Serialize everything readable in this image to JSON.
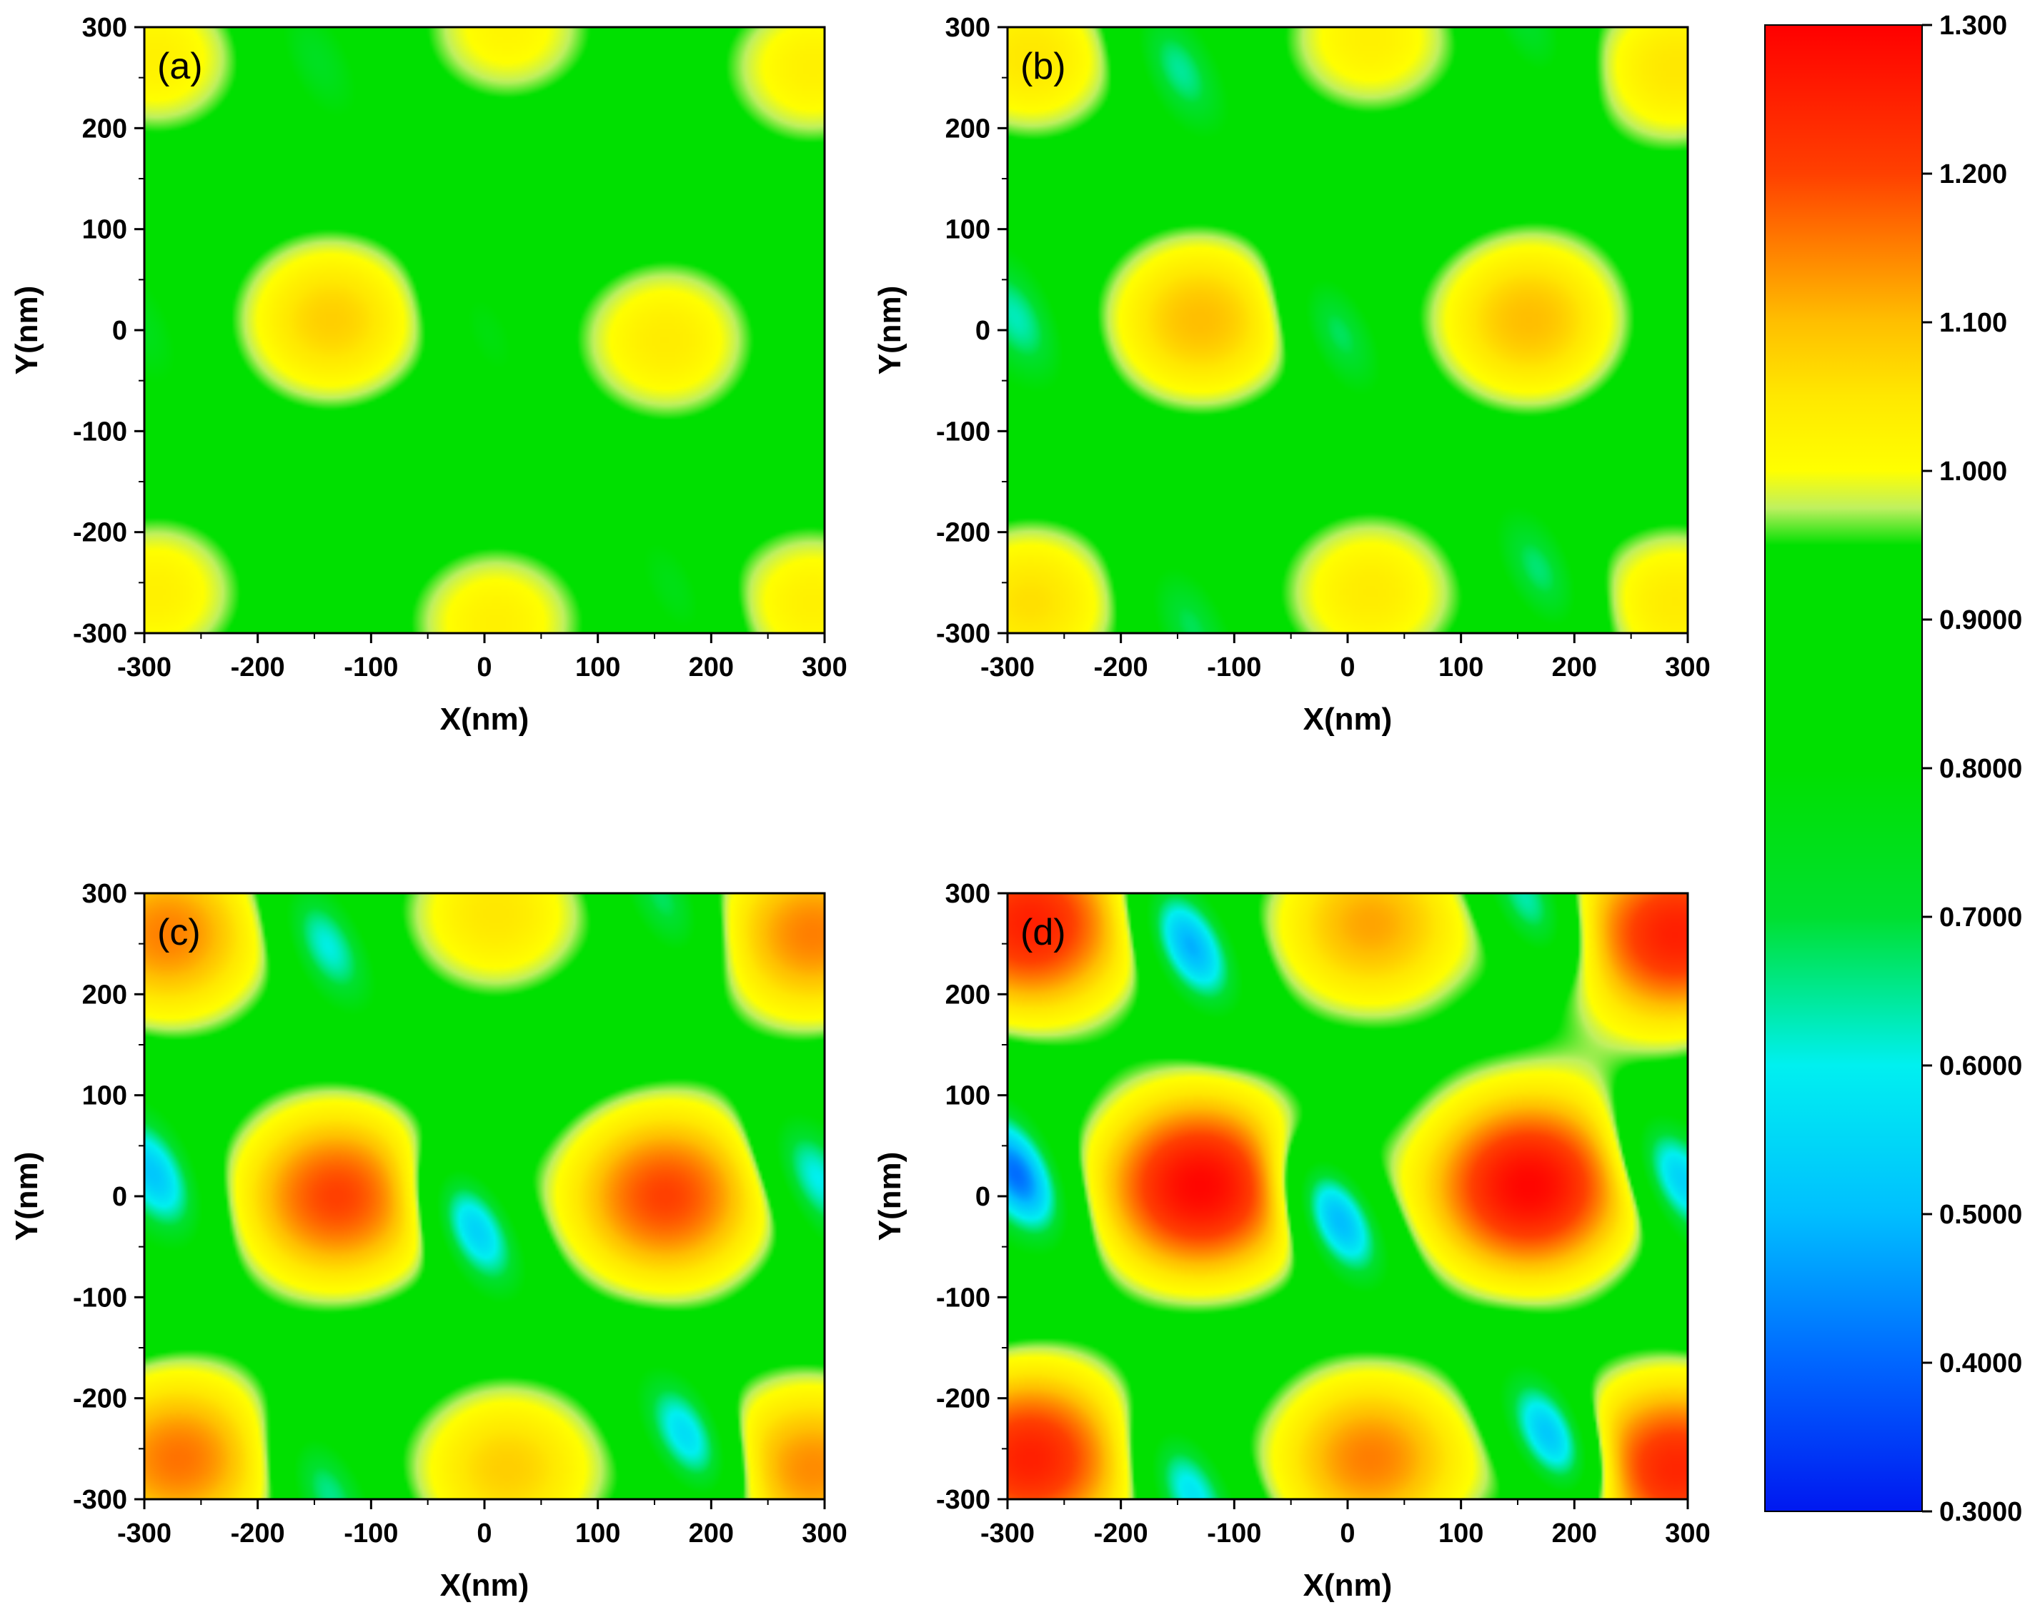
{
  "chart_data": [
    {
      "type": "heatmap",
      "panel": "(a)",
      "xlabel": "X(nm)",
      "ylabel": "Y(nm)",
      "xlim": [
        -300,
        300
      ],
      "ylim": [
        -300,
        300
      ],
      "xticks": [
        "-300",
        "-200",
        "-100",
        "0",
        "100",
        "200",
        "300"
      ],
      "yticks": [
        "300",
        "200",
        "100",
        "0",
        "-100",
        "-200",
        "-300"
      ],
      "background_value": 0.82,
      "features": [
        {
          "kind": "peak",
          "x": -135,
          "y": 10,
          "value": 1.08
        },
        {
          "kind": "peak",
          "x": 160,
          "y": -10,
          "value": 1.04
        },
        {
          "kind": "peak",
          "x": 10,
          "y": -290,
          "value": 1.03
        },
        {
          "kind": "peak",
          "x": 20,
          "y": 300,
          "value": 1.02
        },
        {
          "kind": "peak",
          "x": -290,
          "y": -260,
          "value": 1.03
        },
        {
          "kind": "peak",
          "x": -290,
          "y": 270,
          "value": 1.03
        },
        {
          "kind": "peak",
          "x": 290,
          "y": 260,
          "value": 1.03
        },
        {
          "kind": "peak",
          "x": 290,
          "y": -270,
          "value": 1.03
        },
        {
          "kind": "valley",
          "x": -150,
          "y": 270,
          "value": 0.68
        },
        {
          "kind": "valley",
          "x": 0,
          "y": 0,
          "value": 0.7
        },
        {
          "kind": "valley",
          "x": 170,
          "y": -260,
          "value": 0.68
        },
        {
          "kind": "valley",
          "x": -300,
          "y": 0,
          "value": 0.72
        }
      ]
    },
    {
      "type": "heatmap",
      "panel": "(b)",
      "xlabel": "X(nm)",
      "ylabel": "Y(nm)",
      "xlim": [
        -300,
        300
      ],
      "ylim": [
        -300,
        300
      ],
      "xticks": [
        "-300",
        "-200",
        "-100",
        "0",
        "100",
        "200",
        "300"
      ],
      "yticks": [
        "300",
        "200",
        "100",
        "0",
        "-100",
        "-200",
        "-300"
      ],
      "background_value": 0.82,
      "features": [
        {
          "kind": "peak",
          "x": -130,
          "y": 10,
          "value": 1.1
        },
        {
          "kind": "peak",
          "x": 160,
          "y": 10,
          "value": 1.1
        },
        {
          "kind": "peak",
          "x": 20,
          "y": -260,
          "value": 1.04
        },
        {
          "kind": "peak",
          "x": 20,
          "y": 290,
          "value": 1.03
        },
        {
          "kind": "peak",
          "x": -280,
          "y": -270,
          "value": 1.06
        },
        {
          "kind": "peak",
          "x": -280,
          "y": 270,
          "value": 1.05
        },
        {
          "kind": "peak",
          "x": 290,
          "y": 260,
          "value": 1.05
        },
        {
          "kind": "peak",
          "x": 290,
          "y": -270,
          "value": 1.04
        },
        {
          "kind": "valley",
          "x": -150,
          "y": 260,
          "value": 0.58
        },
        {
          "kind": "valley",
          "x": -10,
          "y": 0,
          "value": 0.58
        },
        {
          "kind": "valley",
          "x": 170,
          "y": -240,
          "value": 0.58
        },
        {
          "kind": "valley",
          "x": -290,
          "y": 10,
          "value": 0.6
        },
        {
          "kind": "valley",
          "x": -140,
          "y": -290,
          "value": 0.62
        },
        {
          "kind": "valley",
          "x": 160,
          "y": 300,
          "value": 0.64
        }
      ]
    },
    {
      "type": "heatmap",
      "panel": "(c)",
      "xlabel": "X(nm)",
      "ylabel": "Y(nm)",
      "xlim": [
        -300,
        300
      ],
      "ylim": [
        -300,
        300
      ],
      "xticks": [
        "-300",
        "-200",
        "-100",
        "0",
        "100",
        "200",
        "300"
      ],
      "yticks": [
        "300",
        "200",
        "100",
        "0",
        "-100",
        "-200",
        "-300"
      ],
      "background_value": 0.82,
      "features": [
        {
          "kind": "peak",
          "x": -130,
          "y": 0,
          "value": 1.2
        },
        {
          "kind": "peak",
          "x": 160,
          "y": 0,
          "value": 1.2
        },
        {
          "kind": "peak",
          "x": 20,
          "y": -270,
          "value": 1.08
        },
        {
          "kind": "peak",
          "x": 10,
          "y": 280,
          "value": 1.05
        },
        {
          "kind": "peak",
          "x": -270,
          "y": -260,
          "value": 1.16
        },
        {
          "kind": "peak",
          "x": -280,
          "y": 260,
          "value": 1.15
        },
        {
          "kind": "peak",
          "x": 290,
          "y": 260,
          "value": 1.15
        },
        {
          "kind": "peak",
          "x": 290,
          "y": -270,
          "value": 1.14
        },
        {
          "kind": "valley",
          "x": -140,
          "y": 250,
          "value": 0.52
        },
        {
          "kind": "valley",
          "x": -10,
          "y": -30,
          "value": 0.42
        },
        {
          "kind": "valley",
          "x": 180,
          "y": -240,
          "value": 0.44
        },
        {
          "kind": "valley",
          "x": -290,
          "y": 20,
          "value": 0.48
        },
        {
          "kind": "valley",
          "x": 290,
          "y": 20,
          "value": 0.52
        },
        {
          "kind": "valley",
          "x": -140,
          "y": -290,
          "value": 0.56
        },
        {
          "kind": "valley",
          "x": 160,
          "y": 290,
          "value": 0.58
        }
      ]
    },
    {
      "type": "heatmap",
      "panel": "(d)",
      "xlabel": "X(nm)",
      "ylabel": "Y(nm)",
      "xlim": [
        -300,
        300
      ],
      "ylim": [
        -300,
        300
      ],
      "xticks": [
        "-300",
        "-200",
        "-100",
        "0",
        "100",
        "200",
        "300"
      ],
      "yticks": [
        "300",
        "200",
        "100",
        "0",
        "-100",
        "-200",
        "-300"
      ],
      "background_value": 0.82,
      "features": [
        {
          "kind": "peak",
          "x": -130,
          "y": 10,
          "value": 1.29
        },
        {
          "kind": "peak",
          "x": 160,
          "y": 10,
          "value": 1.29
        },
        {
          "kind": "peak",
          "x": 20,
          "y": -260,
          "value": 1.15
        },
        {
          "kind": "peak",
          "x": 20,
          "y": 270,
          "value": 1.12
        },
        {
          "kind": "peak",
          "x": -280,
          "y": -260,
          "value": 1.25
        },
        {
          "kind": "peak",
          "x": -280,
          "y": 270,
          "value": 1.25
        },
        {
          "kind": "peak",
          "x": 290,
          "y": 260,
          "value": 1.25
        },
        {
          "kind": "peak",
          "x": 290,
          "y": -270,
          "value": 1.24
        },
        {
          "kind": "valley",
          "x": -140,
          "y": 250,
          "value": 0.38
        },
        {
          "kind": "valley",
          "x": -10,
          "y": -20,
          "value": 0.35
        },
        {
          "kind": "valley",
          "x": 180,
          "y": -240,
          "value": 0.36
        },
        {
          "kind": "valley",
          "x": -290,
          "y": 20,
          "value": 0.36
        },
        {
          "kind": "valley",
          "x": 290,
          "y": 20,
          "value": 0.44
        },
        {
          "kind": "valley",
          "x": -140,
          "y": -290,
          "value": 0.48
        },
        {
          "kind": "valley",
          "x": 160,
          "y": 290,
          "value": 0.5
        }
      ]
    }
  ],
  "colorbar": {
    "range": [
      0.3,
      1.3
    ],
    "labels": [
      "1.300",
      "1.200",
      "1.100",
      "1.000",
      "0.9000",
      "0.8000",
      "0.7000",
      "0.6000",
      "0.5000",
      "0.4000",
      "0.3000"
    ],
    "stops": [
      {
        "value": 0.3,
        "color": "#0018f0"
      },
      {
        "value": 0.4,
        "color": "#0066ff"
      },
      {
        "value": 0.5,
        "color": "#00bfff"
      },
      {
        "value": 0.6,
        "color": "#00f0f0"
      },
      {
        "value": 0.7,
        "color": "#00e030"
      },
      {
        "value": 0.8,
        "color": "#00e000"
      },
      {
        "value": 0.95,
        "color": "#00e000"
      },
      {
        "value": 0.975,
        "color": "#bff060"
      },
      {
        "value": 1.0,
        "color": "#ffff00"
      },
      {
        "value": 1.05,
        "color": "#ffe800"
      },
      {
        "value": 1.1,
        "color": "#ffbf00"
      },
      {
        "value": 1.2,
        "color": "#ff4000"
      },
      {
        "value": 1.3,
        "color": "#ff0000"
      }
    ]
  }
}
